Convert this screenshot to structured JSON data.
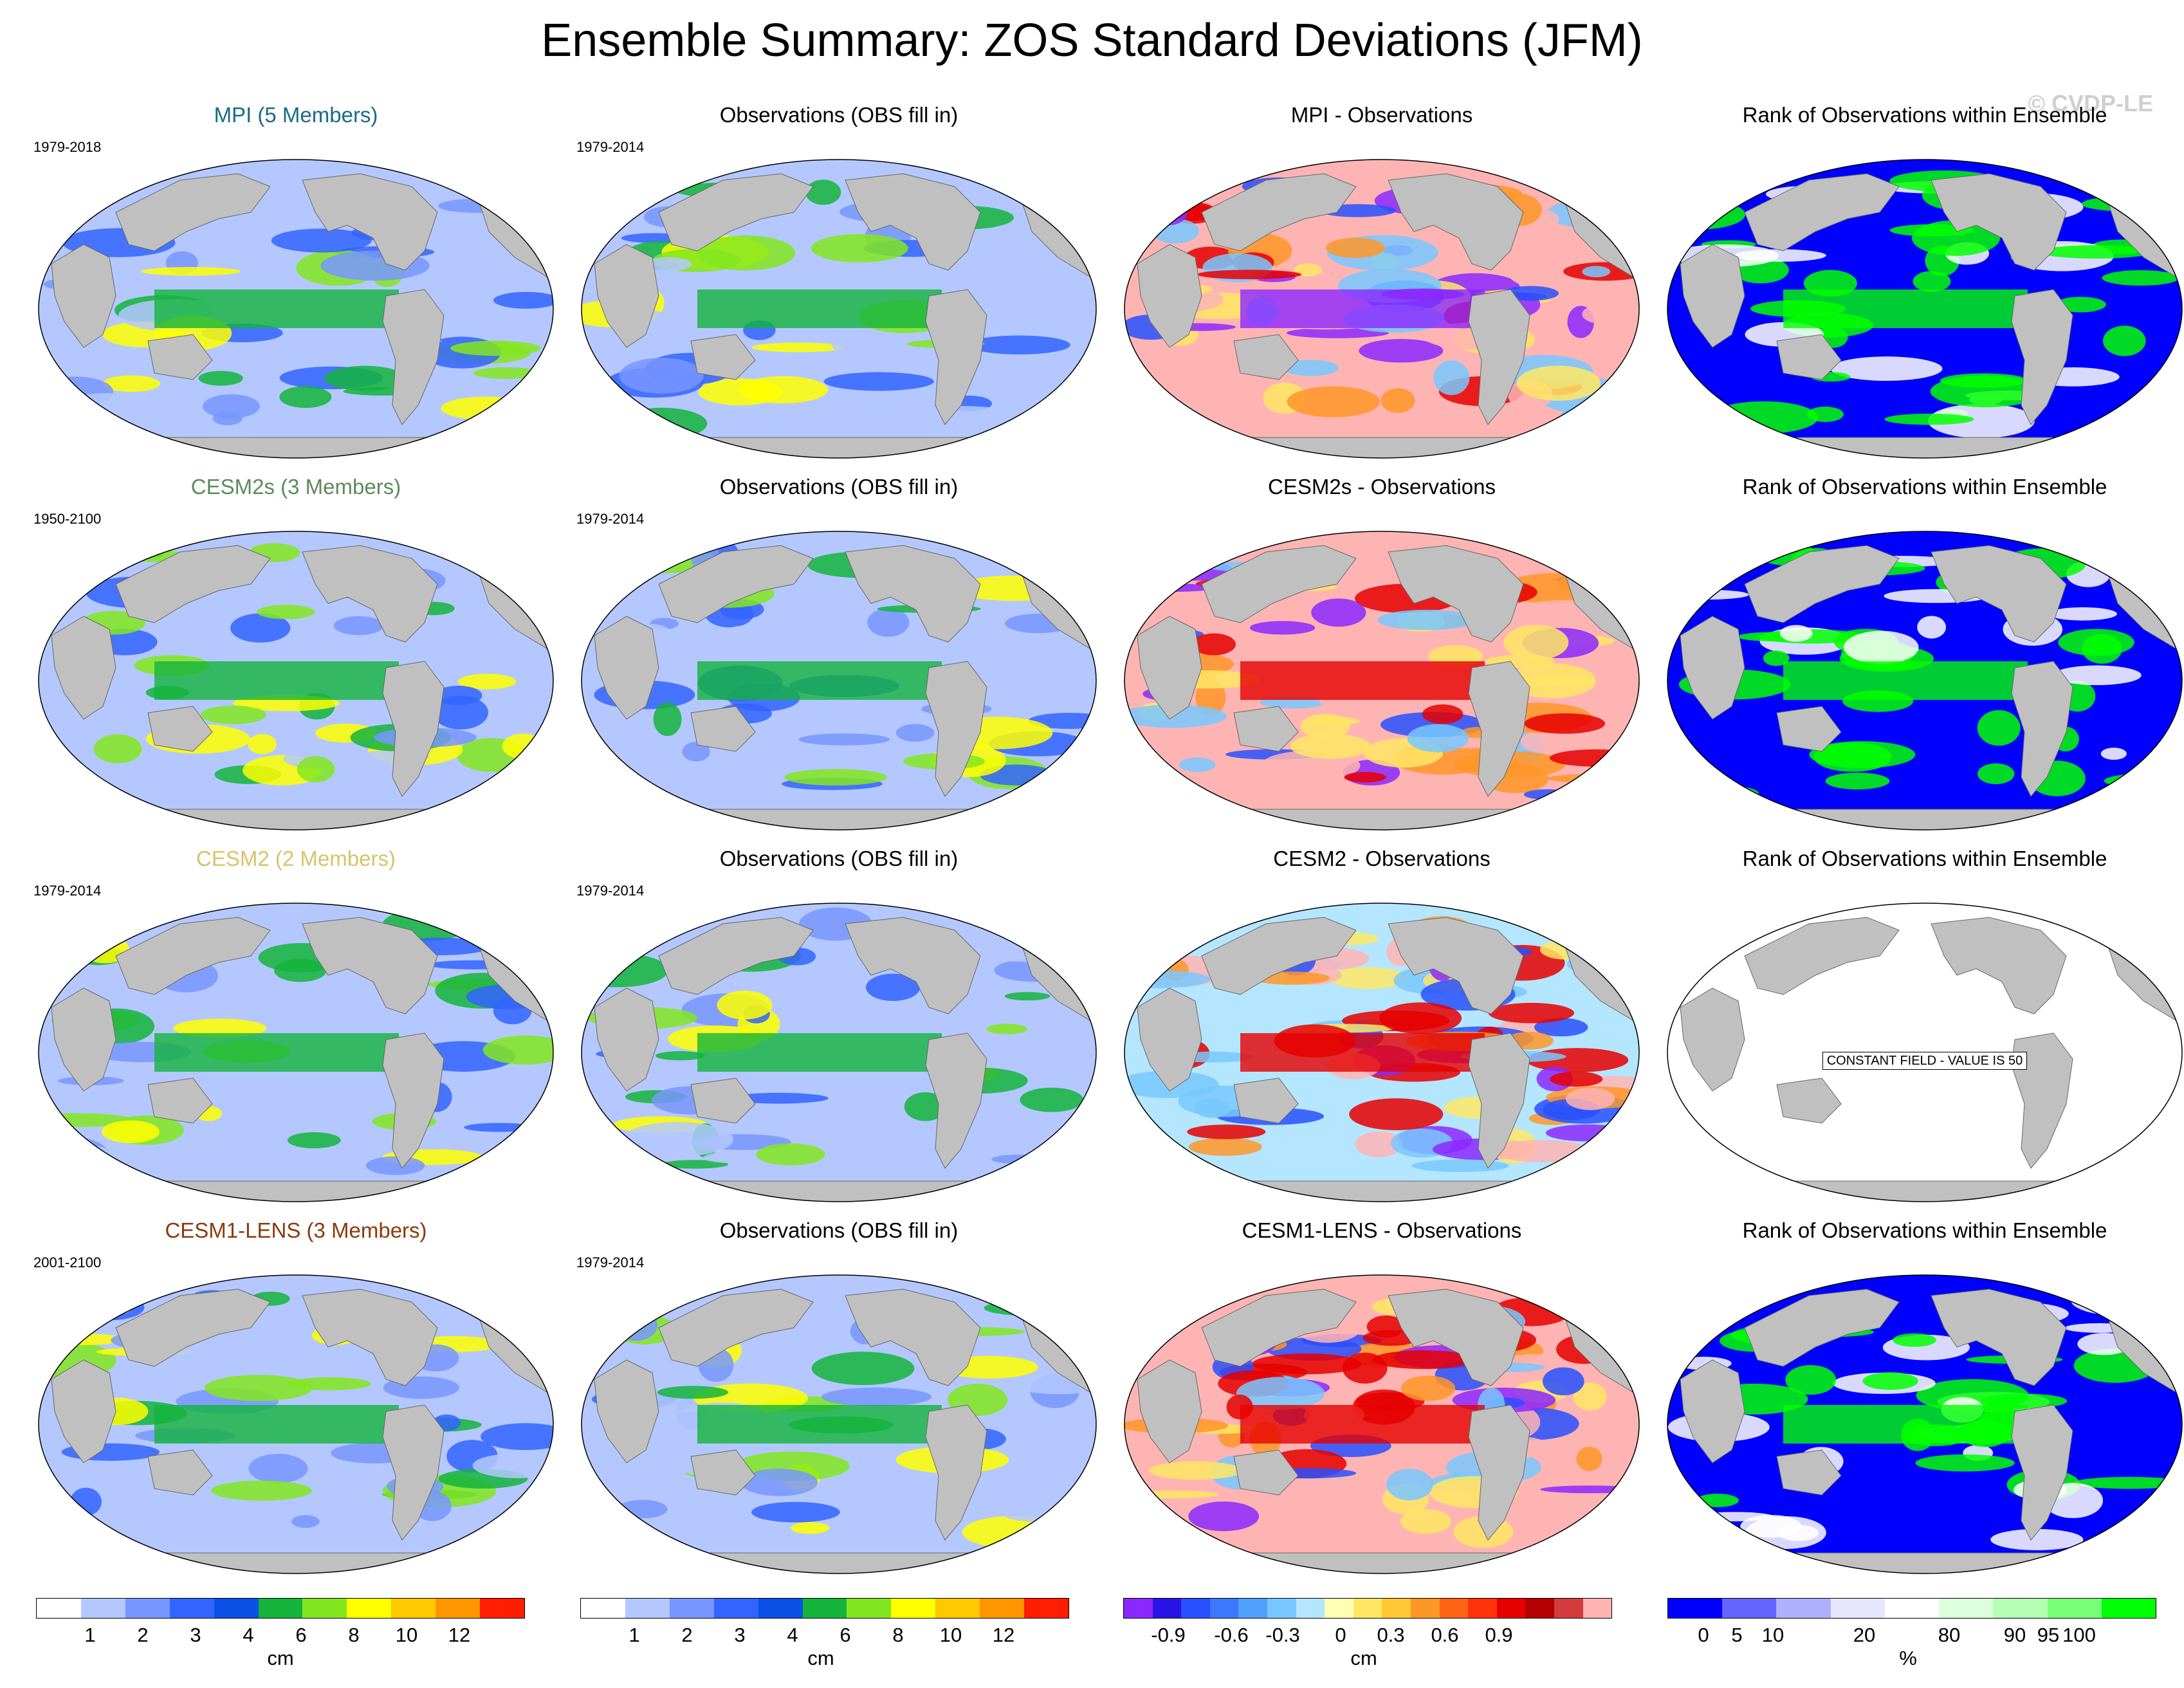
{
  "title": "Ensemble Summary: ZOS Standard Deviations (JFM)",
  "watermark": "© CVDP-LE",
  "rows": [
    {
      "model": {
        "label": "MPI (5 Members)",
        "color": "#1a6a86",
        "period": "1979-2018"
      },
      "obs": {
        "label": "Observations (OBS fill in)",
        "period": "1979-2014"
      },
      "diff": {
        "label": "MPI - Observations"
      },
      "rank": {
        "label": "Rank of Observations within Ensemble"
      }
    },
    {
      "model": {
        "label": "CESM2s (3 Members)",
        "color": "#5d8a5d",
        "period": "1950-2100"
      },
      "obs": {
        "label": "Observations (OBS fill in)",
        "period": "1979-2014"
      },
      "diff": {
        "label": "CESM2s - Observations"
      },
      "rank": {
        "label": "Rank of Observations within Ensemble"
      }
    },
    {
      "model": {
        "label": "CESM2 (2 Members)",
        "color": "#d8c36a",
        "period": "1979-2014"
      },
      "obs": {
        "label": "Observations (OBS fill in)",
        "period": "1979-2014"
      },
      "diff": {
        "label": "CESM2 - Observations"
      },
      "rank": {
        "label": "Rank of Observations within Ensemble",
        "note": "CONSTANT FIELD - VALUE IS 50"
      }
    },
    {
      "model": {
        "label": "CESM1-LENS (3 Members)",
        "color": "#8b3a0e",
        "period": "2001-2100"
      },
      "obs": {
        "label": "Observations (OBS fill in)",
        "period": "1979-2014"
      },
      "diff": {
        "label": "CESM1-LENS - Observations"
      },
      "rank": {
        "label": "Rank of Observations within Ensemble"
      }
    }
  ],
  "colorbars": {
    "std": {
      "colors": [
        "#ffffff",
        "#b4c8ff",
        "#7896ff",
        "#3264ff",
        "#0a50e6",
        "#14b43c",
        "#82e61e",
        "#ffff00",
        "#ffc800",
        "#ff9600",
        "#ff1e00"
      ],
      "labels": [
        "1",
        "2",
        "3",
        "4",
        "6",
        "8",
        "10",
        "12"
      ],
      "unit": "cm"
    },
    "diff": {
      "colors": [
        "#8c28ff",
        "#2814e6",
        "#2850ff",
        "#3c78ff",
        "#50a0ff",
        "#78c8ff",
        "#b4e6ff",
        "#ffffb4",
        "#ffe664",
        "#ffc832",
        "#ff9628",
        "#ff6414",
        "#ff320a",
        "#e60000",
        "#b40000",
        "#d23c3c",
        "#ffb4b4"
      ],
      "labels": [
        "-0.9",
        "-0.6",
        "-0.3",
        "0",
        "0.3",
        "0.6",
        "0.9"
      ],
      "unit": "cm"
    },
    "rank": {
      "colors": [
        "#0000ff",
        "#6464ff",
        "#afafff",
        "#e6e6ff",
        "#ffffff",
        "#dcffdc",
        "#b4ffb4",
        "#78ff78",
        "#00ff00"
      ],
      "labels": [
        "0",
        "5",
        "10",
        "20",
        "80",
        "90",
        "95",
        "100"
      ],
      "unit": "%"
    }
  }
}
